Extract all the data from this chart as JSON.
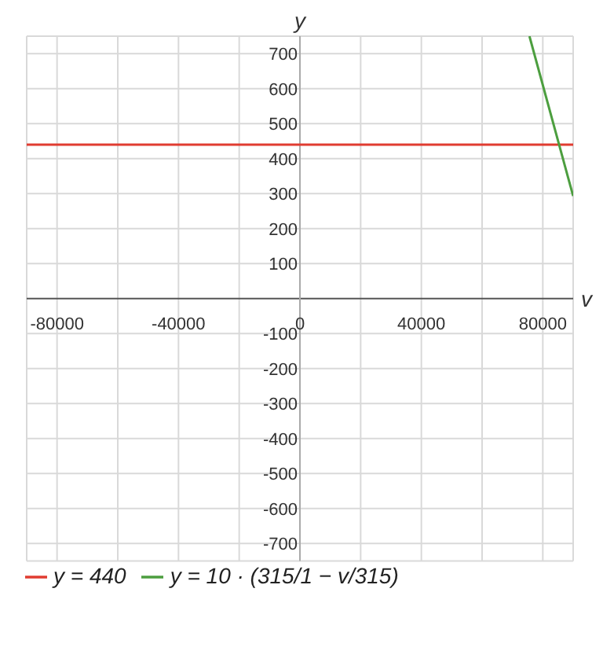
{
  "chart_data": {
    "type": "line",
    "xlabel": "v",
    "ylabel": "y",
    "series": [
      {
        "name": "y = 440",
        "color": "#e03c31",
        "x": [
          -90000,
          90000
        ],
        "values": [
          440,
          440
        ]
      },
      {
        "name": "y = 10 · (315/1 − v/315)",
        "color": "#4c9e3f",
        "x": [
          75600,
          90000
        ],
        "values": [
          750,
          293
        ]
      }
    ],
    "xlim": [
      -90000,
      90000
    ],
    "xticks": [
      -80000,
      {
        "value": -60000,
        "label": null
      },
      -40000,
      {
        "value": -20000,
        "label": null
      },
      0,
      {
        "value": 20000,
        "label": null
      },
      40000,
      {
        "value": 60000,
        "label": null
      },
      80000
    ],
    "ylim": [
      -750,
      750
    ],
    "yticks": [
      -700,
      -600,
      -500,
      -400,
      -300,
      -200,
      -100,
      100,
      200,
      300,
      400,
      500,
      600,
      700
    ],
    "grid": true,
    "legend": "bottom",
    "marker": "none",
    "line_style": "solid"
  }
}
